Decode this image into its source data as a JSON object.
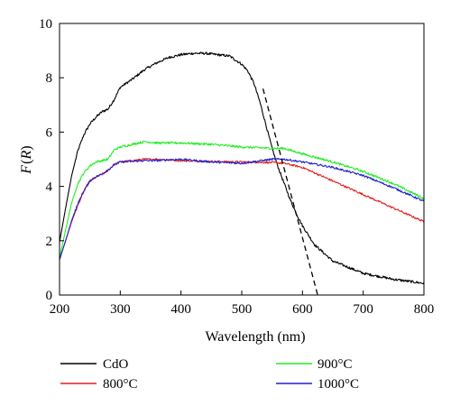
{
  "chart_data": {
    "type": "line",
    "title": "",
    "xlabel": "Wavelength (nm)",
    "ylabel_italic_main": "F",
    "ylabel_paren_open": "(",
    "ylabel_italic_arg": "R",
    "ylabel_paren_close": ")",
    "xlim": [
      200,
      800
    ],
    "ylim": [
      0,
      10
    ],
    "x_ticks": [
      200,
      300,
      400,
      500,
      600,
      700,
      800
    ],
    "y_ticks": [
      0,
      2,
      4,
      6,
      8,
      10
    ],
    "grid": false,
    "legend_position": "bottom",
    "series": [
      {
        "name": "CdO",
        "color": "#000000",
        "noise": 0.045,
        "x": [
          200,
          210,
          220,
          230,
          240,
          250,
          260,
          270,
          280,
          290,
          300,
          320,
          340,
          360,
          380,
          400,
          420,
          440,
          460,
          480,
          500,
          510,
          520,
          530,
          540,
          550,
          560,
          570,
          580,
          590,
          600,
          620,
          650,
          700,
          750,
          800
        ],
        "y": [
          1.95,
          3.2,
          4.4,
          5.3,
          5.9,
          6.3,
          6.55,
          6.75,
          6.85,
          7.2,
          7.65,
          7.95,
          8.3,
          8.55,
          8.75,
          8.85,
          8.9,
          8.9,
          8.85,
          8.8,
          8.5,
          8.25,
          7.8,
          7.1,
          6.25,
          5.4,
          4.7,
          4.1,
          3.5,
          3.0,
          2.55,
          1.85,
          1.25,
          0.8,
          0.58,
          0.43
        ]
      },
      {
        "name": "800°C",
        "color": "#e02020",
        "noise": 0.035,
        "x": [
          200,
          210,
          220,
          230,
          240,
          250,
          260,
          270,
          280,
          290,
          300,
          320,
          340,
          360,
          380,
          400,
          450,
          500,
          550,
          570,
          600,
          650,
          700,
          750,
          800
        ],
        "y": [
          1.3,
          2.0,
          2.7,
          3.3,
          3.8,
          4.2,
          4.35,
          4.45,
          4.6,
          4.8,
          4.9,
          4.95,
          5.0,
          5.0,
          4.98,
          4.95,
          4.92,
          4.9,
          4.88,
          4.85,
          4.7,
          4.2,
          3.7,
          3.2,
          2.7
        ]
      },
      {
        "name": "900°C",
        "color": "#22ee22",
        "noise": 0.04,
        "x": [
          200,
          210,
          220,
          230,
          240,
          250,
          260,
          270,
          280,
          290,
          300,
          320,
          340,
          360,
          380,
          400,
          450,
          500,
          550,
          570,
          600,
          650,
          700,
          750,
          800
        ],
        "y": [
          1.35,
          2.4,
          3.4,
          4.1,
          4.5,
          4.75,
          4.9,
          4.95,
          5.0,
          5.35,
          5.45,
          5.55,
          5.65,
          5.6,
          5.6,
          5.6,
          5.55,
          5.45,
          5.4,
          5.4,
          5.2,
          4.9,
          4.55,
          4.1,
          3.55
        ]
      },
      {
        "name": "1000°C",
        "color": "#2020d0",
        "noise": 0.035,
        "x": [
          200,
          210,
          220,
          230,
          240,
          250,
          260,
          270,
          280,
          290,
          300,
          320,
          340,
          360,
          380,
          400,
          450,
          500,
          550,
          570,
          600,
          650,
          700,
          750,
          800
        ],
        "y": [
          1.3,
          2.0,
          2.75,
          3.35,
          3.85,
          4.2,
          4.35,
          4.45,
          4.6,
          4.8,
          4.9,
          4.92,
          4.95,
          4.95,
          4.98,
          5.0,
          4.9,
          4.85,
          5.0,
          5.0,
          4.9,
          4.7,
          4.4,
          3.95,
          3.45
        ]
      }
    ],
    "annotations": [
      {
        "type": "dashed-tangent",
        "color": "#000000",
        "x": [
          535,
          625
        ],
        "y": [
          7.6,
          0
        ]
      }
    ]
  }
}
